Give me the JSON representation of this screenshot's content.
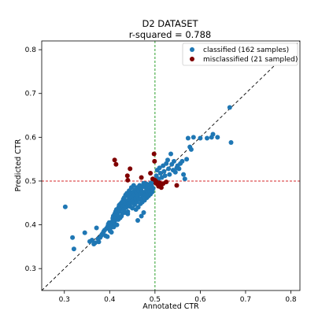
{
  "chart_data": {
    "type": "scatter",
    "title": "D2 DATASET",
    "subtitle": "r-squared = 0.788",
    "xlabel": "Annotated CTR",
    "ylabel": "Predicted CTR",
    "xlim": [
      0.25,
      0.82
    ],
    "ylim": [
      0.25,
      0.82
    ],
    "xticks": [
      0.3,
      0.4,
      0.5,
      0.6,
      0.7,
      0.8
    ],
    "yticks": [
      0.3,
      0.4,
      0.5,
      0.6,
      0.7,
      0.8
    ],
    "xtick_labels": [
      "0.3",
      "0.4",
      "0.5",
      "0.6",
      "0.7",
      "0.8"
    ],
    "ytick_labels": [
      "0.3",
      "0.4",
      "0.5",
      "0.6",
      "0.7",
      "0.8"
    ],
    "threshold_x": 0.5,
    "threshold_y": 0.5,
    "diagonal": true,
    "grid": false,
    "legend_position": "top-right",
    "colors": {
      "classified": "#1f77b4",
      "misclassified": "#800000",
      "threshold_x_line": "#2ca02c",
      "threshold_y_line": "#d62728",
      "diagonal_line": "#000000"
    },
    "series": [
      {
        "name": "classified (162 samples)",
        "color": "#1f77b4",
        "points": [
          [
            0.302,
            0.441
          ],
          [
            0.318,
            0.371
          ],
          [
            0.321,
            0.345
          ],
          [
            0.345,
            0.382
          ],
          [
            0.356,
            0.362
          ],
          [
            0.361,
            0.365
          ],
          [
            0.365,
            0.356
          ],
          [
            0.368,
            0.359
          ],
          [
            0.371,
            0.393
          ],
          [
            0.374,
            0.368
          ],
          [
            0.376,
            0.361
          ],
          [
            0.379,
            0.371
          ],
          [
            0.381,
            0.375
          ],
          [
            0.383,
            0.378
          ],
          [
            0.385,
            0.381
          ],
          [
            0.387,
            0.385
          ],
          [
            0.389,
            0.388
          ],
          [
            0.391,
            0.375
          ],
          [
            0.393,
            0.392
          ],
          [
            0.395,
            0.373
          ],
          [
            0.396,
            0.397
          ],
          [
            0.397,
            0.402
          ],
          [
            0.398,
            0.391
          ],
          [
            0.399,
            0.405
          ],
          [
            0.401,
            0.386
          ],
          [
            0.402,
            0.393
          ],
          [
            0.403,
            0.402
          ],
          [
            0.404,
            0.383
          ],
          [
            0.405,
            0.398
          ],
          [
            0.406,
            0.408
          ],
          [
            0.407,
            0.415
          ],
          [
            0.408,
            0.42
          ],
          [
            0.409,
            0.395
          ],
          [
            0.41,
            0.405
          ],
          [
            0.411,
            0.425
          ],
          [
            0.412,
            0.41
          ],
          [
            0.413,
            0.43
          ],
          [
            0.414,
            0.418
          ],
          [
            0.415,
            0.435
          ],
          [
            0.416,
            0.4
          ],
          [
            0.417,
            0.422
          ],
          [
            0.418,
            0.428
          ],
          [
            0.419,
            0.412
          ],
          [
            0.42,
            0.44
          ],
          [
            0.421,
            0.445
          ],
          [
            0.422,
            0.432
          ],
          [
            0.423,
            0.416
          ],
          [
            0.424,
            0.448
          ],
          [
            0.425,
            0.438
          ],
          [
            0.426,
            0.42
          ],
          [
            0.427,
            0.452
          ],
          [
            0.428,
            0.426
          ],
          [
            0.429,
            0.443
          ],
          [
            0.43,
            0.458
          ],
          [
            0.431,
            0.435
          ],
          [
            0.432,
            0.462
          ],
          [
            0.433,
            0.445
          ],
          [
            0.434,
            0.428
          ],
          [
            0.435,
            0.468
          ],
          [
            0.436,
            0.45
          ],
          [
            0.437,
            0.44
          ],
          [
            0.438,
            0.472
          ],
          [
            0.439,
            0.455
          ],
          [
            0.44,
            0.43
          ],
          [
            0.441,
            0.465
          ],
          [
            0.442,
            0.448
          ],
          [
            0.443,
            0.478
          ],
          [
            0.444,
            0.458
          ],
          [
            0.445,
            0.442
          ],
          [
            0.446,
            0.47
          ],
          [
            0.447,
            0.452
          ],
          [
            0.448,
            0.485
          ],
          [
            0.449,
            0.462
          ],
          [
            0.45,
            0.438
          ],
          [
            0.451,
            0.475
          ],
          [
            0.452,
            0.455
          ],
          [
            0.453,
            0.49
          ],
          [
            0.454,
            0.468
          ],
          [
            0.455,
            0.446
          ],
          [
            0.456,
            0.48
          ],
          [
            0.457,
            0.46
          ],
          [
            0.458,
            0.435
          ],
          [
            0.459,
            0.472
          ],
          [
            0.46,
            0.452
          ],
          [
            0.461,
            0.485
          ],
          [
            0.462,
            0.465
          ],
          [
            0.463,
            0.44
          ],
          [
            0.464,
            0.478
          ],
          [
            0.465,
            0.458
          ],
          [
            0.466,
            0.49
          ],
          [
            0.467,
            0.47
          ],
          [
            0.468,
            0.448
          ],
          [
            0.469,
            0.482
          ],
          [
            0.47,
            0.46
          ],
          [
            0.471,
            0.476
          ],
          [
            0.472,
            0.452
          ],
          [
            0.473,
            0.488
          ],
          [
            0.474,
            0.466
          ],
          [
            0.475,
            0.495
          ],
          [
            0.476,
            0.474
          ],
          [
            0.477,
            0.456
          ],
          [
            0.478,
            0.486
          ],
          [
            0.479,
            0.468
          ],
          [
            0.48,
            0.494
          ],
          [
            0.481,
            0.478
          ],
          [
            0.482,
            0.462
          ],
          [
            0.483,
            0.49
          ],
          [
            0.484,
            0.472
          ],
          [
            0.485,
            0.482
          ],
          [
            0.486,
            0.466
          ],
          [
            0.487,
            0.492
          ],
          [
            0.488,
            0.476
          ],
          [
            0.489,
            0.485
          ],
          [
            0.49,
            0.47
          ],
          [
            0.491,
            0.496
          ],
          [
            0.492,
            0.48
          ],
          [
            0.493,
            0.488
          ],
          [
            0.494,
            0.475
          ],
          [
            0.495,
            0.497
          ],
          [
            0.496,
            0.483
          ],
          [
            0.475,
            0.428
          ],
          [
            0.47,
            0.42
          ],
          [
            0.462,
            0.41
          ],
          [
            0.45,
            0.45
          ],
          [
            0.44,
            0.425
          ],
          [
            0.503,
            0.512
          ],
          [
            0.505,
            0.525
          ],
          [
            0.508,
            0.505
          ],
          [
            0.51,
            0.53
          ],
          [
            0.512,
            0.518
          ],
          [
            0.515,
            0.508
          ],
          [
            0.518,
            0.535
          ],
          [
            0.52,
            0.522
          ],
          [
            0.522,
            0.512
          ],
          [
            0.525,
            0.54
          ],
          [
            0.528,
            0.548
          ],
          [
            0.53,
            0.528
          ],
          [
            0.532,
            0.515
          ],
          [
            0.535,
            0.562
          ],
          [
            0.537,
            0.538
          ],
          [
            0.54,
            0.525
          ],
          [
            0.542,
            0.545
          ],
          [
            0.545,
            0.52
          ],
          [
            0.548,
            0.53
          ],
          [
            0.55,
            0.535
          ],
          [
            0.553,
            0.528
          ],
          [
            0.556,
            0.54
          ],
          [
            0.56,
            0.545
          ],
          [
            0.563,
            0.515
          ],
          [
            0.566,
            0.505
          ],
          [
            0.57,
            0.55
          ],
          [
            0.573,
            0.598
          ],
          [
            0.577,
            0.578
          ],
          [
            0.58,
            0.572
          ],
          [
            0.585,
            0.6
          ],
          [
            0.6,
            0.598
          ],
          [
            0.615,
            0.598
          ],
          [
            0.625,
            0.6
          ],
          [
            0.628,
            0.607
          ],
          [
            0.638,
            0.6
          ],
          [
            0.665,
            0.668
          ],
          [
            0.668,
            0.588
          ]
        ]
      },
      {
        "name": "misclassified (21 sampled)",
        "color": "#800000",
        "points": [
          [
            0.411,
            0.548
          ],
          [
            0.414,
            0.538
          ],
          [
            0.439,
            0.512
          ],
          [
            0.44,
            0.502
          ],
          [
            0.445,
            0.528
          ],
          [
            0.47,
            0.508
          ],
          [
            0.49,
            0.518
          ],
          [
            0.495,
            0.505
          ],
          [
            0.498,
            0.562
          ],
          [
            0.499,
            0.545
          ],
          [
            0.5,
            0.502
          ],
          [
            0.502,
            0.495
          ],
          [
            0.504,
            0.498
          ],
          [
            0.506,
            0.492
          ],
          [
            0.508,
            0.488
          ],
          [
            0.51,
            0.496
          ],
          [
            0.512,
            0.49
          ],
          [
            0.514,
            0.485
          ],
          [
            0.518,
            0.494
          ],
          [
            0.525,
            0.498
          ],
          [
            0.548,
            0.49
          ]
        ]
      }
    ]
  }
}
